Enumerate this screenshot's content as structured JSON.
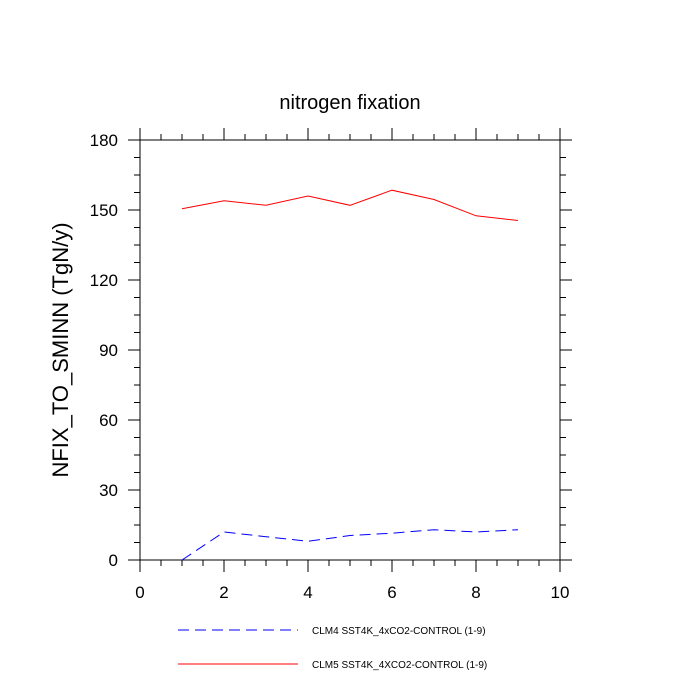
{
  "chart_data": {
    "type": "line",
    "title": "nitrogen fixation",
    "xlabel": "",
    "ylabel": "NFIX_TO_SMINN  (TgN/y)",
    "xlim": [
      0,
      10
    ],
    "ylim": [
      0,
      180
    ],
    "xticks": [
      0,
      2,
      4,
      6,
      8,
      10
    ],
    "yticks": [
      0,
      30,
      60,
      90,
      120,
      150,
      180
    ],
    "grid": false,
    "legend_position": "bottom",
    "series": [
      {
        "name": "CLM4 SST4K_4xCO2-CONTROL (1-9)",
        "color": "#0000ff",
        "style": "dashed",
        "x": [
          1,
          2,
          3,
          4,
          5,
          6,
          7,
          8,
          9
        ],
        "y": [
          0,
          12,
          10,
          8,
          10.5,
          11.5,
          13,
          12,
          13
        ]
      },
      {
        "name": "CLM5 SST4K_4XCO2-CONTROL (1-9)",
        "color": "#ff0000",
        "style": "solid",
        "x": [
          1,
          2,
          3,
          4,
          5,
          6,
          7,
          8,
          9
        ],
        "y": [
          150.5,
          154,
          152,
          156,
          152,
          158.5,
          154.5,
          147.5,
          145.5
        ]
      }
    ]
  }
}
